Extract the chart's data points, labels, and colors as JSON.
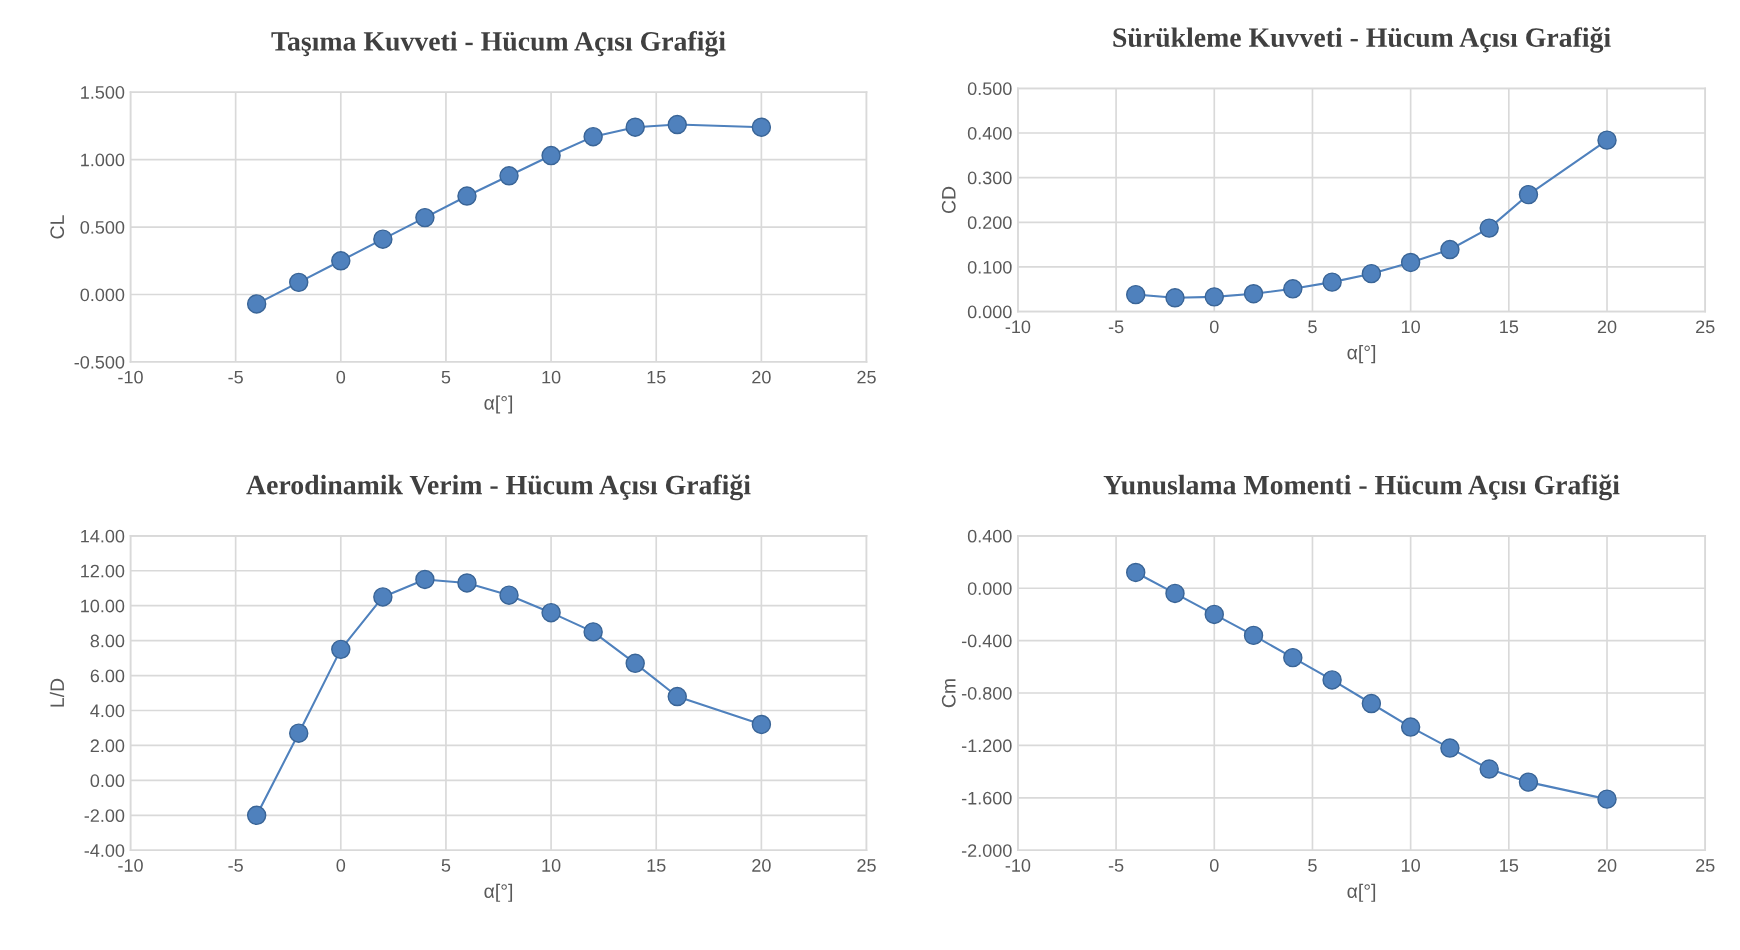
{
  "chart_data": [
    {
      "type": "line",
      "title": "Taşıma Kuvveti - Hücum Açısı Grafiği",
      "xlabel": "α[°]",
      "ylabel": "CL",
      "marker": "circle",
      "line_style": "solid",
      "grid": true,
      "x": [
        -4,
        -2,
        0,
        2,
        4,
        6,
        8,
        10,
        12,
        14,
        16,
        20
      ],
      "series": [
        {
          "color": "#4f81bd",
          "values": [
            -0.07,
            0.09,
            0.25,
            0.41,
            0.57,
            0.73,
            0.88,
            1.03,
            1.17,
            1.24,
            1.26,
            1.24
          ]
        }
      ],
      "xlim": [
        -10,
        25
      ],
      "xticks": [
        -10,
        -5,
        0,
        5,
        10,
        15,
        20,
        25
      ],
      "ylim": [
        -0.5,
        1.5
      ],
      "yticks": [
        {
          "value": -0.5,
          "label": "-0.500"
        },
        {
          "value": 0,
          "label": "0.000"
        },
        {
          "value": 0.5,
          "label": "0.500"
        },
        {
          "value": 1.0,
          "label": "1.000"
        },
        {
          "value": 1.5,
          "label": "1.500"
        }
      ]
    },
    {
      "type": "line",
      "title": "Sürükleme Kuvveti - Hücum Açısı Grafiği",
      "xlabel": "α[°]",
      "ylabel": "CD",
      "marker": "circle",
      "line_style": "solid",
      "grid": true,
      "x": [
        -4,
        -2,
        0,
        2,
        4,
        6,
        8,
        10,
        12,
        14,
        16,
        20
      ],
      "series": [
        {
          "color": "#4f81bd",
          "values": [
            0.038,
            0.031,
            0.033,
            0.04,
            0.051,
            0.066,
            0.085,
            0.11,
            0.139,
            0.187,
            0.262,
            0.384
          ]
        }
      ],
      "xlim": [
        -10,
        25
      ],
      "xticks": [
        -10,
        -5,
        0,
        5,
        10,
        15,
        20,
        25
      ],
      "ylim": [
        0,
        0.5
      ],
      "yticks": [
        {
          "value": 0,
          "label": "0.000"
        },
        {
          "value": 0.1,
          "label": "0.100"
        },
        {
          "value": 0.2,
          "label": "0.200"
        },
        {
          "value": 0.3,
          "label": "0.300"
        },
        {
          "value": 0.4,
          "label": "0.400"
        },
        {
          "value": 0.5,
          "label": "0.500"
        }
      ]
    },
    {
      "type": "line",
      "title": "Aerodinamik Verim - Hücum Açısı Grafiği",
      "xlabel": "α[°]",
      "ylabel": "L/D",
      "marker": "circle",
      "line_style": "solid",
      "grid": true,
      "x": [
        -4,
        -2,
        0,
        2,
        4,
        6,
        8,
        10,
        12,
        14,
        16,
        20
      ],
      "series": [
        {
          "color": "#4f81bd",
          "values": [
            -2.0,
            2.7,
            7.5,
            10.5,
            11.5,
            11.3,
            10.6,
            9.6,
            8.5,
            6.7,
            4.8,
            3.2
          ]
        }
      ],
      "xlim": [
        -10,
        25
      ],
      "xticks": [
        -10,
        -5,
        0,
        5,
        10,
        15,
        20,
        25
      ],
      "ylim": [
        -4,
        14
      ],
      "yticks": [
        {
          "value": -4,
          "label": "-4.00"
        },
        {
          "value": -2,
          "label": "-2.00"
        },
        {
          "value": 0,
          "label": "0.00"
        },
        {
          "value": 2,
          "label": "2.00"
        },
        {
          "value": 4,
          "label": "4.00"
        },
        {
          "value": 6,
          "label": "6.00"
        },
        {
          "value": 8,
          "label": "8.00"
        },
        {
          "value": 10,
          "label": "10.00"
        },
        {
          "value": 12,
          "label": "12.00"
        },
        {
          "value": 14,
          "label": "14.00"
        }
      ]
    },
    {
      "type": "line",
      "title": "Yunuslama Momenti - Hücum Açısı Grafiği",
      "xlabel": "α[°]",
      "ylabel": "Cm",
      "marker": "circle",
      "line_style": "solid",
      "grid": true,
      "x": [
        -4,
        -2,
        0,
        2,
        4,
        6,
        8,
        10,
        12,
        14,
        16,
        20
      ],
      "series": [
        {
          "color": "#4f81bd",
          "values": [
            0.12,
            -0.04,
            -0.2,
            -0.36,
            -0.53,
            -0.7,
            -0.88,
            -1.06,
            -1.22,
            -1.38,
            -1.48,
            -1.61
          ]
        }
      ],
      "xlim": [
        -10,
        25
      ],
      "xticks": [
        -10,
        -5,
        0,
        5,
        10,
        15,
        20,
        25
      ],
      "ylim": [
        -2.0,
        0.4
      ],
      "yticks": [
        {
          "value": -2.0,
          "label": "-2.000"
        },
        {
          "value": -1.6,
          "label": "-1.600"
        },
        {
          "value": -1.2,
          "label": "-1.200"
        },
        {
          "value": -0.8,
          "label": "-0.800"
        },
        {
          "value": -0.4,
          "label": "-0.400"
        },
        {
          "value": 0,
          "label": "0.000"
        },
        {
          "value": 0.4,
          "label": "0.400"
        }
      ]
    }
  ]
}
